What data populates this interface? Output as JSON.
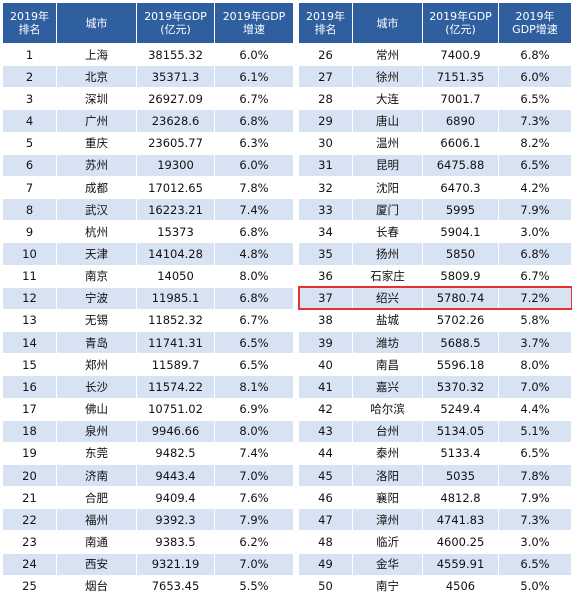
{
  "left_table": {
    "headers": {
      "rank": "2019年\n排名",
      "city": "城市",
      "gdp": "2019年GDP\n(亿元)",
      "growth": "2019年GDP\n增速"
    },
    "rows": [
      {
        "rank": "1",
        "city": "上海",
        "gdp": "38155.32",
        "growth": "6.0%"
      },
      {
        "rank": "2",
        "city": "北京",
        "gdp": "35371.3",
        "growth": "6.1%"
      },
      {
        "rank": "3",
        "city": "深圳",
        "gdp": "26927.09",
        "growth": "6.7%"
      },
      {
        "rank": "4",
        "city": "广州",
        "gdp": "23628.6",
        "growth": "6.8%"
      },
      {
        "rank": "5",
        "city": "重庆",
        "gdp": "23605.77",
        "growth": "6.3%"
      },
      {
        "rank": "6",
        "city": "苏州",
        "gdp": "19300",
        "growth": "6.0%"
      },
      {
        "rank": "7",
        "city": "成都",
        "gdp": "17012.65",
        "growth": "7.8%"
      },
      {
        "rank": "8",
        "city": "武汉",
        "gdp": "16223.21",
        "growth": "7.4%"
      },
      {
        "rank": "9",
        "city": "杭州",
        "gdp": "15373",
        "growth": "6.8%"
      },
      {
        "rank": "10",
        "city": "天津",
        "gdp": "14104.28",
        "growth": "4.8%"
      },
      {
        "rank": "11",
        "city": "南京",
        "gdp": "14050",
        "growth": "8.0%"
      },
      {
        "rank": "12",
        "city": "宁波",
        "gdp": "11985.1",
        "growth": "6.8%"
      },
      {
        "rank": "13",
        "city": "无锡",
        "gdp": "11852.32",
        "growth": "6.7%"
      },
      {
        "rank": "14",
        "city": "青岛",
        "gdp": "11741.31",
        "growth": "6.5%"
      },
      {
        "rank": "15",
        "city": "郑州",
        "gdp": "11589.7",
        "growth": "6.5%"
      },
      {
        "rank": "16",
        "city": "长沙",
        "gdp": "11574.22",
        "growth": "8.1%"
      },
      {
        "rank": "17",
        "city": "佛山",
        "gdp": "10751.02",
        "growth": "6.9%"
      },
      {
        "rank": "18",
        "city": "泉州",
        "gdp": "9946.66",
        "growth": "8.0%"
      },
      {
        "rank": "19",
        "city": "东莞",
        "gdp": "9482.5",
        "growth": "7.4%"
      },
      {
        "rank": "20",
        "city": "济南",
        "gdp": "9443.4",
        "growth": "7.0%"
      },
      {
        "rank": "21",
        "city": "合肥",
        "gdp": "9409.4",
        "growth": "7.6%"
      },
      {
        "rank": "22",
        "city": "福州",
        "gdp": "9392.3",
        "growth": "7.9%"
      },
      {
        "rank": "23",
        "city": "南通",
        "gdp": "9383.5",
        "growth": "6.2%"
      },
      {
        "rank": "24",
        "city": "西安",
        "gdp": "9321.19",
        "growth": "7.0%"
      },
      {
        "rank": "25",
        "city": "烟台",
        "gdp": "7653.45",
        "growth": "5.5%"
      }
    ]
  },
  "right_table": {
    "headers": {
      "rank": "2019年\n排名",
      "city": "城市",
      "gdp": "2019年GDP\n(亿元)",
      "growth": "2019年\nGDP增速"
    },
    "rows": [
      {
        "rank": "26",
        "city": "常州",
        "gdp": "7400.9",
        "growth": "6.8%"
      },
      {
        "rank": "27",
        "city": "徐州",
        "gdp": "7151.35",
        "growth": "6.0%"
      },
      {
        "rank": "28",
        "city": "大连",
        "gdp": "7001.7",
        "growth": "6.5%"
      },
      {
        "rank": "29",
        "city": "唐山",
        "gdp": "6890",
        "growth": "7.3%"
      },
      {
        "rank": "30",
        "city": "温州",
        "gdp": "6606.1",
        "growth": "8.2%"
      },
      {
        "rank": "31",
        "city": "昆明",
        "gdp": "6475.88",
        "growth": "6.5%"
      },
      {
        "rank": "32",
        "city": "沈阳",
        "gdp": "6470.3",
        "growth": "4.2%"
      },
      {
        "rank": "33",
        "city": "厦门",
        "gdp": "5995",
        "growth": "7.9%"
      },
      {
        "rank": "34",
        "city": "长春",
        "gdp": "5904.1",
        "growth": "3.0%"
      },
      {
        "rank": "35",
        "city": "扬州",
        "gdp": "5850",
        "growth": "6.8%"
      },
      {
        "rank": "36",
        "city": "石家庄",
        "gdp": "5809.9",
        "growth": "6.7%"
      },
      {
        "rank": "37",
        "city": "绍兴",
        "gdp": "5780.74",
        "growth": "7.2%"
      },
      {
        "rank": "38",
        "city": "盐城",
        "gdp": "5702.26",
        "growth": "5.8%"
      },
      {
        "rank": "39",
        "city": "潍坊",
        "gdp": "5688.5",
        "growth": "3.7%"
      },
      {
        "rank": "40",
        "city": "南昌",
        "gdp": "5596.18",
        "growth": "8.0%"
      },
      {
        "rank": "41",
        "city": "嘉兴",
        "gdp": "5370.32",
        "growth": "7.0%"
      },
      {
        "rank": "42",
        "city": "哈尔滨",
        "gdp": "5249.4",
        "growth": "4.4%"
      },
      {
        "rank": "43",
        "city": "台州",
        "gdp": "5134.05",
        "growth": "5.1%"
      },
      {
        "rank": "44",
        "city": "泰州",
        "gdp": "5133.4",
        "growth": "6.5%"
      },
      {
        "rank": "45",
        "city": "洛阳",
        "gdp": "5035",
        "growth": "7.8%"
      },
      {
        "rank": "46",
        "city": "襄阳",
        "gdp": "4812.8",
        "growth": "7.9%"
      },
      {
        "rank": "47",
        "city": "漳州",
        "gdp": "4741.83",
        "growth": "7.3%"
      },
      {
        "rank": "48",
        "city": "临沂",
        "gdp": "4600.25",
        "growth": "3.0%"
      },
      {
        "rank": "49",
        "city": "金华",
        "gdp": "4559.91",
        "growth": "6.5%"
      },
      {
        "rank": "50",
        "city": "南宁",
        "gdp": "4506",
        "growth": "5.0%"
      }
    ]
  },
  "highlight_rank": "37",
  "colors": {
    "header_bg": "#2f5f9e",
    "stripe": "#d7e3f3",
    "highlight": "#e3312d"
  }
}
